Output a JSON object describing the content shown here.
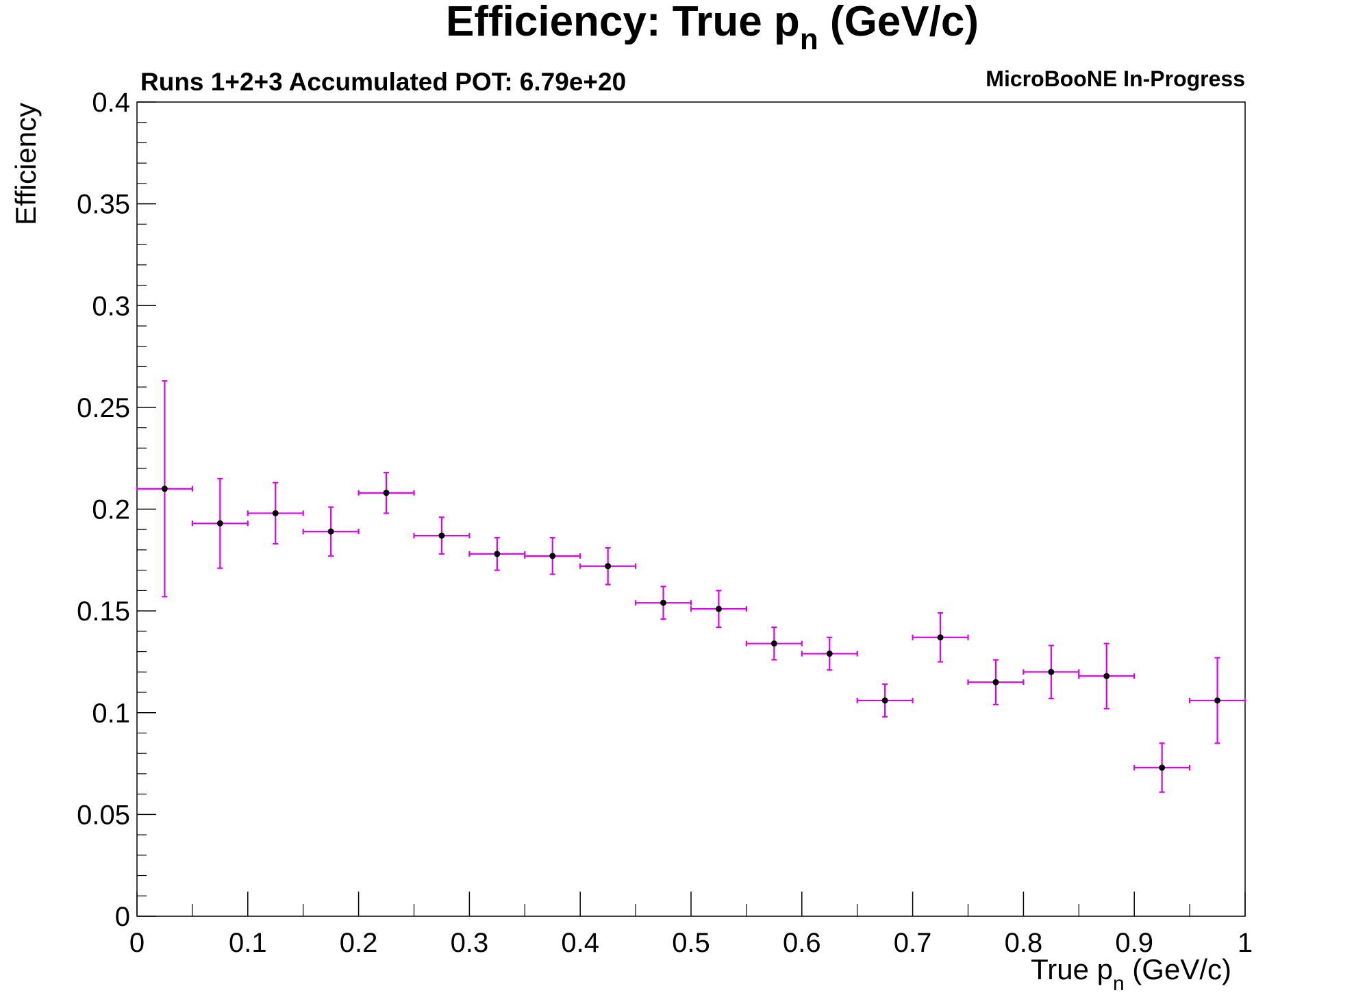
{
  "chart_data": {
    "type": "scatter",
    "title": {
      "main": "Efficiency: True p",
      "sub": "n",
      "tail": " (GeV/c)"
    },
    "subtitle_left": "Runs 1+2+3 Accumulated POT: 6.79e+20",
    "subtitle_right": "MicroBooNE In-Progress",
    "xlabel": {
      "main": "True p",
      "sub": "n",
      "tail": " (GeV/c)"
    },
    "ylabel": "Efficiency",
    "xlim": [
      0,
      1
    ],
    "ylim": [
      0,
      0.4
    ],
    "x_ticks": [
      0,
      0.1,
      0.2,
      0.3,
      0.4,
      0.5,
      0.6,
      0.7,
      0.8,
      0.9,
      1
    ],
    "x_tick_labels": [
      "0",
      "0.1",
      "0.2",
      "0.3",
      "0.4",
      "0.5",
      "0.6",
      "0.7",
      "0.8",
      "0.9",
      "1"
    ],
    "y_ticks": [
      0,
      0.05,
      0.1,
      0.15,
      0.2,
      0.25,
      0.3,
      0.35,
      0.4
    ],
    "y_tick_labels": [
      "0",
      "0.05",
      "0.1",
      "0.15",
      "0.2",
      "0.25",
      "0.3",
      "0.35",
      "0.4"
    ],
    "grid": false,
    "marker_color": "#000000",
    "error_bar_color": "#dd00ee",
    "x": [
      0.025,
      0.075,
      0.125,
      0.175,
      0.225,
      0.275,
      0.325,
      0.375,
      0.425,
      0.475,
      0.525,
      0.575,
      0.625,
      0.675,
      0.725,
      0.775,
      0.825,
      0.875,
      0.925,
      0.975
    ],
    "x_err": 0.025,
    "y": [
      0.21,
      0.193,
      0.198,
      0.189,
      0.208,
      0.187,
      0.178,
      0.177,
      0.172,
      0.154,
      0.151,
      0.134,
      0.129,
      0.106,
      0.137,
      0.115,
      0.12,
      0.118,
      0.073,
      0.106
    ],
    "y_err": [
      0.053,
      0.022,
      0.015,
      0.012,
      0.01,
      0.009,
      0.008,
      0.009,
      0.009,
      0.008,
      0.009,
      0.008,
      0.008,
      0.008,
      0.012,
      0.011,
      0.013,
      0.016,
      0.012,
      0.021
    ]
  }
}
